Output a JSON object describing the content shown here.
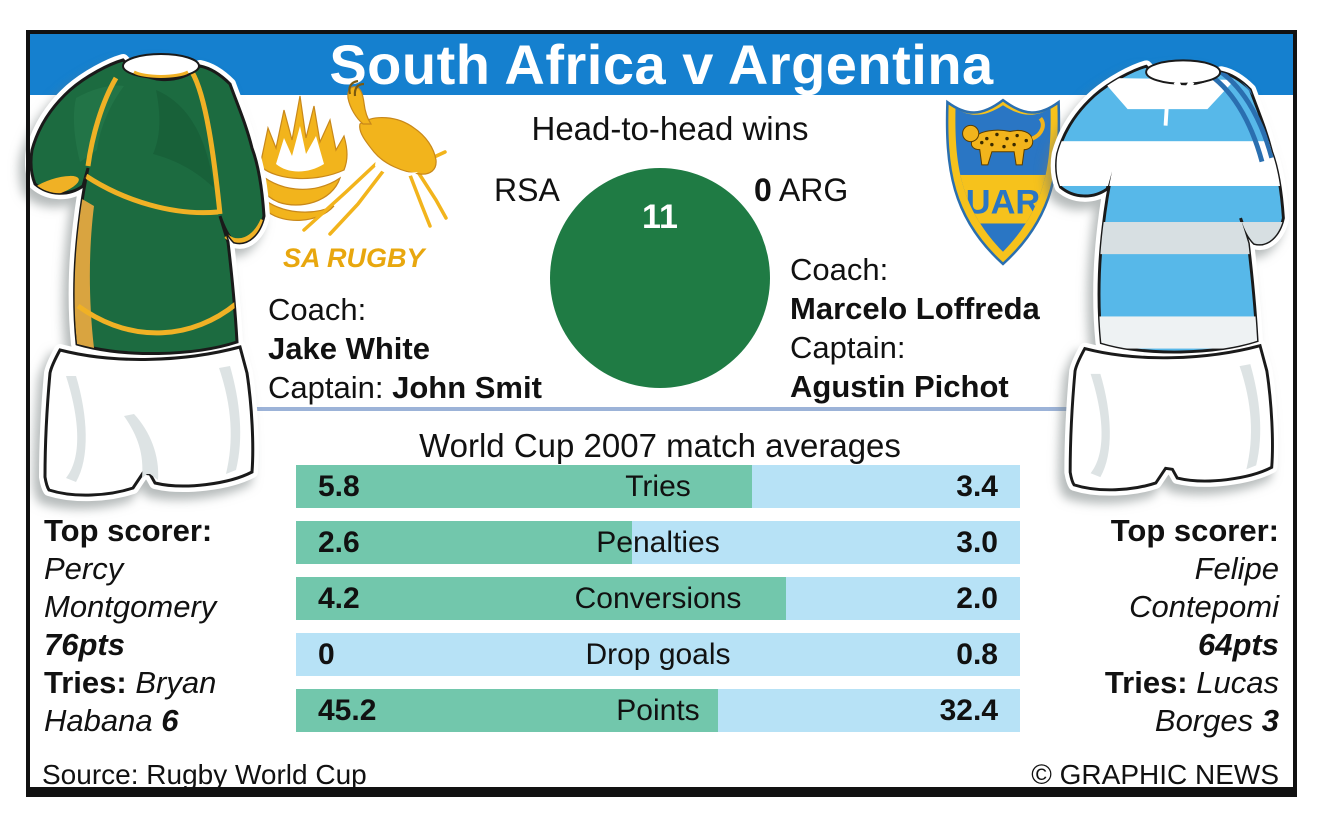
{
  "title": "South Africa v Argentina",
  "head_to_head": {
    "heading": "Head-to-head wins",
    "left_team": "RSA",
    "left_wins": "11",
    "right_wins": "0",
    "right_team": "ARG"
  },
  "south_africa": {
    "logo_text": "SA RUGBY",
    "coach_label": "Coach:",
    "coach": "Jake White",
    "captain_label": "Captain:",
    "captain": "John Smit",
    "scorer": {
      "label": "Top scorer:",
      "line1": "Percy",
      "line2": "Montgomery",
      "points": "76pts",
      "tries_label": "Tries:",
      "tries_line1": "Bryan",
      "tries_line2": "Habana",
      "tries_count": "6"
    }
  },
  "argentina": {
    "crest_text": "UAR",
    "coach_label": "Coach:",
    "coach": "Marcelo Loffreda",
    "captain_label": "Captain:",
    "captain": "Agustin Pichot",
    "scorer": {
      "label": "Top scorer:",
      "line1": "Felipe",
      "line2": "Contepomi",
      "points": "64pts",
      "tries_label": "Tries:",
      "tries_line1": "Lucas",
      "tries_line2": "Borges",
      "tries_count": "3"
    }
  },
  "chart_data": {
    "type": "bar",
    "title": "World Cup 2007 match averages",
    "categories": [
      "Tries",
      "Penalties",
      "Conversions",
      "Drop goals",
      "Points"
    ],
    "series": [
      {
        "name": "South Africa",
        "values": [
          5.8,
          2.6,
          4.2,
          0,
          45.2
        ]
      },
      {
        "name": "Argentina",
        "values": [
          3.4,
          3.0,
          2.0,
          0.8,
          32.4
        ]
      }
    ],
    "left_display": [
      "5.8",
      "2.6",
      "4.2",
      "0",
      "45.2"
    ],
    "right_display": [
      "3.4",
      "3.0",
      "2.0",
      "0.8",
      "32.4"
    ],
    "layout": "paired horizontal bars, left=South Africa (teal), right=Argentina (light blue), label centered"
  },
  "footer": {
    "source": "Source: Rugby World Cup",
    "credit": "© GRAPHIC NEWS"
  },
  "colors": {
    "banner_blue": "#1580cf",
    "circle_green": "#1f7b44",
    "bar_teal": "#72c7ac",
    "bar_blue": "#b7e2f6",
    "divider_blue": "#9cb3d8",
    "gold": "#f0b125",
    "sa_green": "#1c6b40",
    "arg_sky_blue": "#57b8e9",
    "crest_blue": "#2a76c4"
  }
}
